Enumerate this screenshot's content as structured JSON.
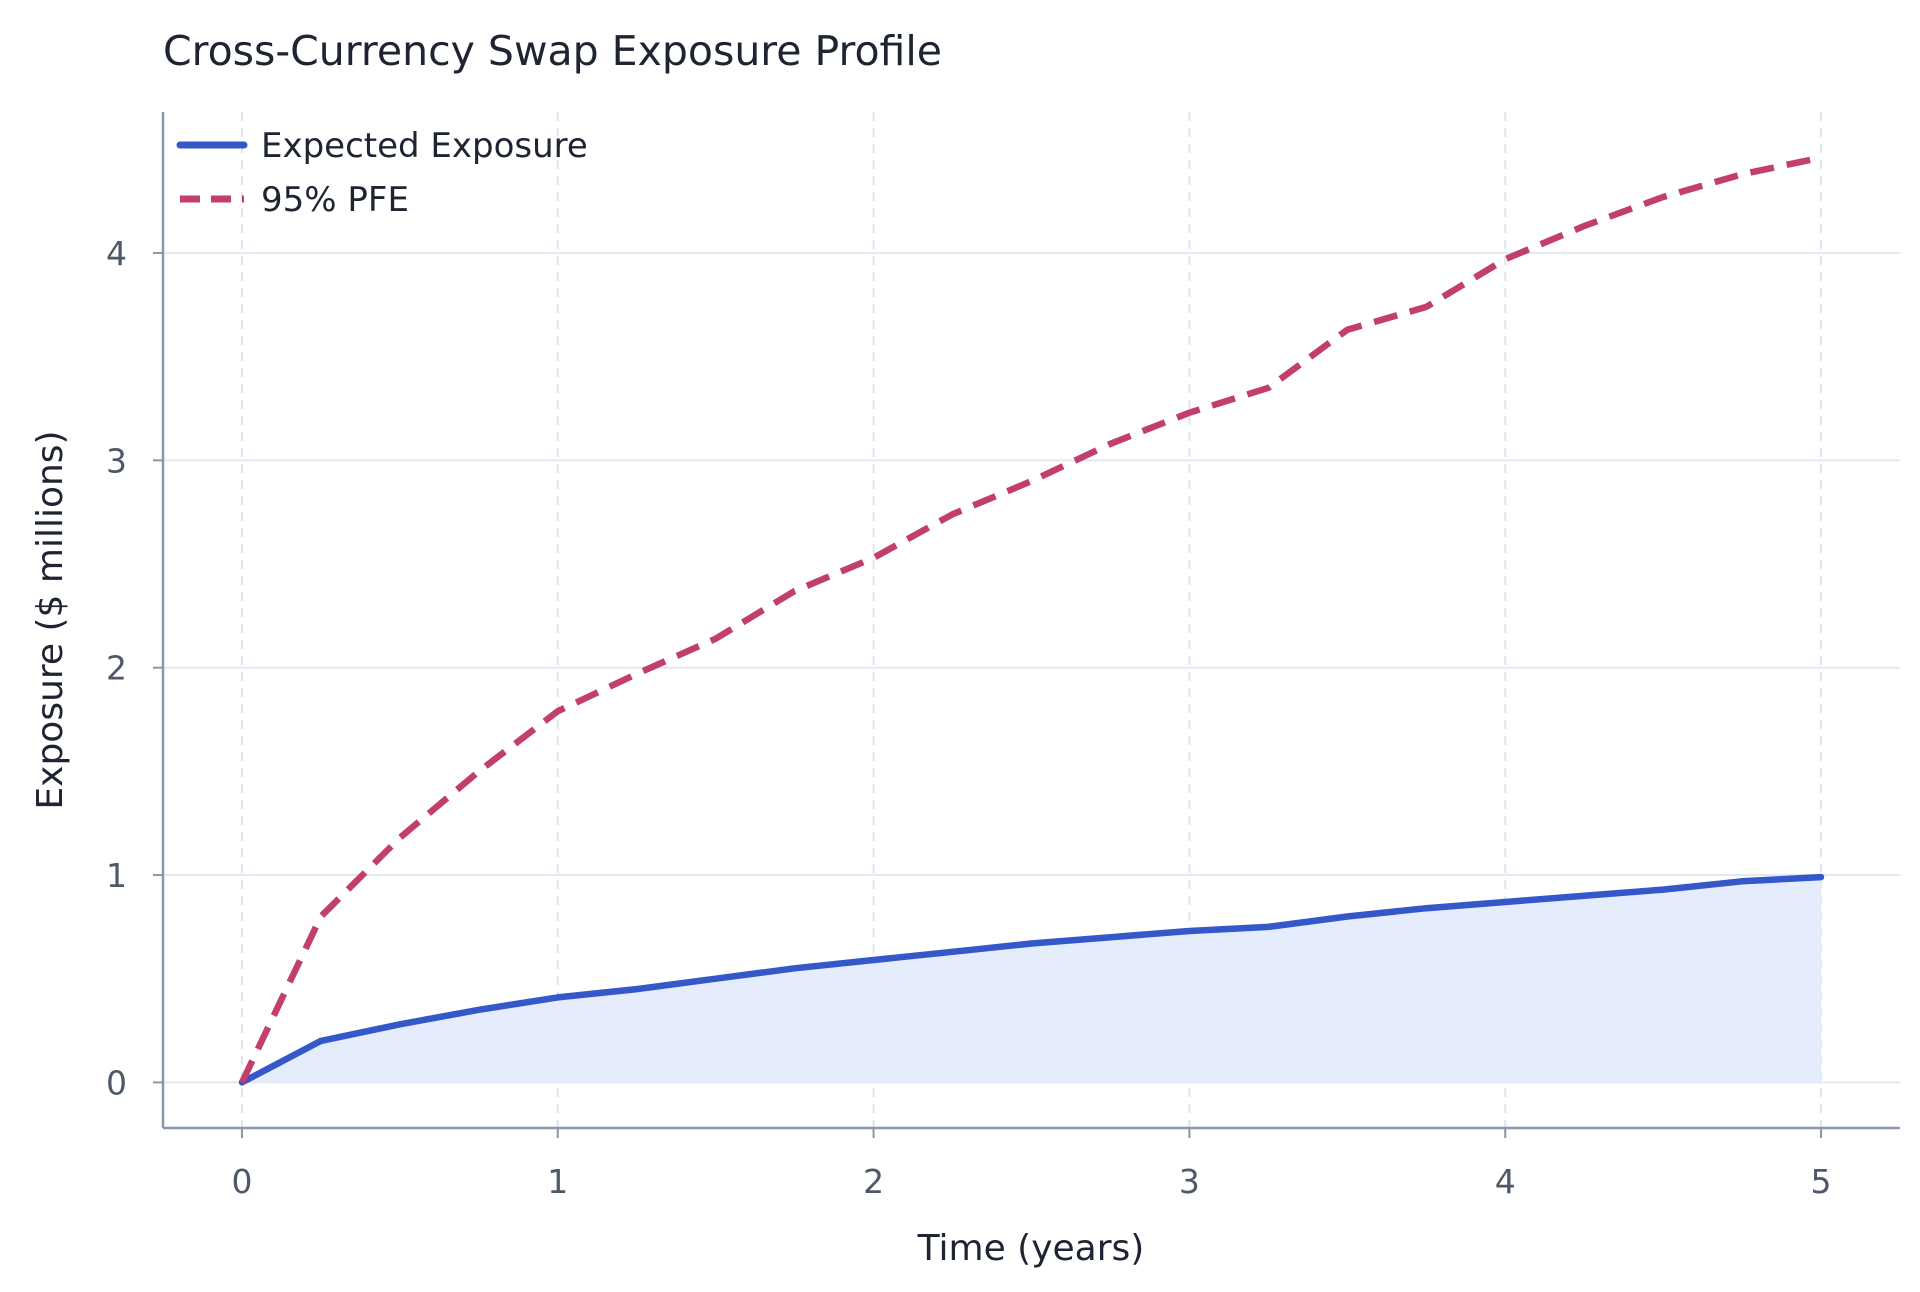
{
  "chart_data": {
    "type": "line",
    "title": "Cross-Currency Swap Exposure Profile",
    "xlabel": "Time (years)",
    "ylabel": "Exposure ($ millions)",
    "xlim": [
      -0.25,
      5.25
    ],
    "ylim": [
      -0.22,
      4.68
    ],
    "xticks": [
      0,
      1,
      2,
      3,
      4,
      5
    ],
    "yticks": [
      0,
      1,
      2,
      3,
      4
    ],
    "x": [
      0,
      0.25,
      0.5,
      0.75,
      1.0,
      1.25,
      1.5,
      1.75,
      2.0,
      2.25,
      2.5,
      2.75,
      3.0,
      3.25,
      3.5,
      3.75,
      4.0,
      4.25,
      4.5,
      4.75,
      5.0
    ],
    "series": [
      {
        "name": "Expected Exposure",
        "style": "solid",
        "color": "#3457c9",
        "fill": "#e5edfc",
        "values": [
          0,
          0.2,
          0.28,
          0.35,
          0.41,
          0.45,
          0.5,
          0.55,
          0.59,
          0.63,
          0.67,
          0.7,
          0.73,
          0.75,
          0.8,
          0.84,
          0.87,
          0.9,
          0.93,
          0.97,
          0.99
        ]
      },
      {
        "name": "95% PFE",
        "style": "dashed",
        "color": "#c23e6e",
        "values": [
          0,
          0.8,
          1.18,
          1.5,
          1.79,
          1.97,
          2.14,
          2.37,
          2.53,
          2.74,
          2.9,
          3.08,
          3.23,
          3.35,
          3.63,
          3.74,
          3.97,
          4.13,
          4.27,
          4.38,
          4.46
        ]
      }
    ],
    "grid": true,
    "legend": "top-left"
  }
}
